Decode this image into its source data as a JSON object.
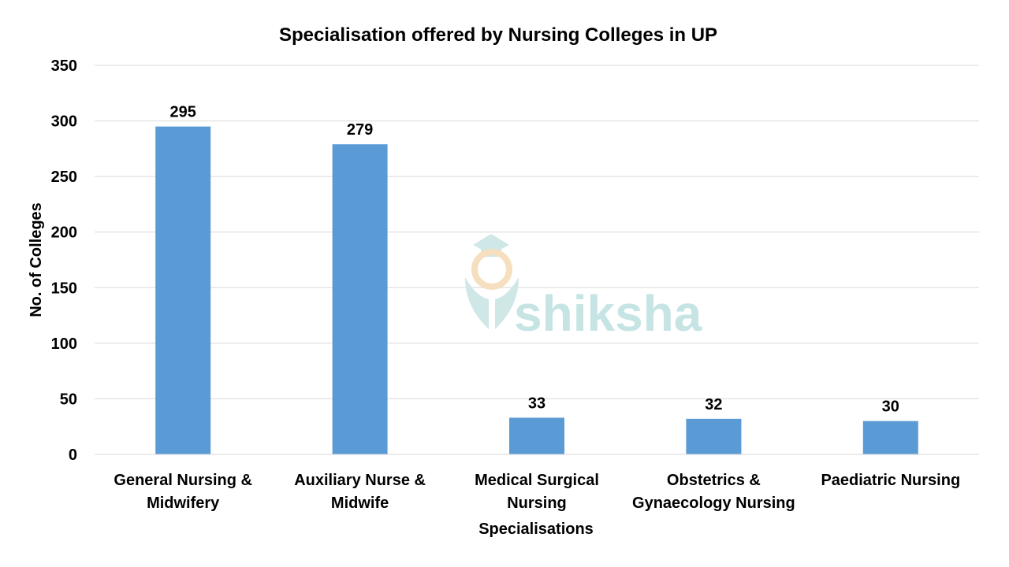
{
  "chart_data": {
    "type": "bar",
    "title": "Specialisation offered by Nursing Colleges in UP",
    "xlabel": "Specialisations",
    "ylabel": "No. of Colleges",
    "categories": [
      [
        "General Nursing &",
        "Midwifery"
      ],
      [
        "Auxiliary Nurse &",
        "Midwife"
      ],
      [
        "Medical Surgical",
        "Nursing"
      ],
      [
        "Obstetrics &",
        "Gynaecology Nursing"
      ],
      [
        "Paediatric Nursing"
      ]
    ],
    "values": [
      295,
      279,
      33,
      32,
      30
    ],
    "ylim": [
      0,
      350
    ],
    "yticks": [
      0,
      50,
      100,
      150,
      200,
      250,
      300,
      350
    ],
    "grid": true,
    "legend": "none",
    "bar_color": "#5b9bd5",
    "grid_color": "#d9d9d9"
  },
  "watermark": {
    "text": "shiksha",
    "color": "#c6e4e4"
  }
}
